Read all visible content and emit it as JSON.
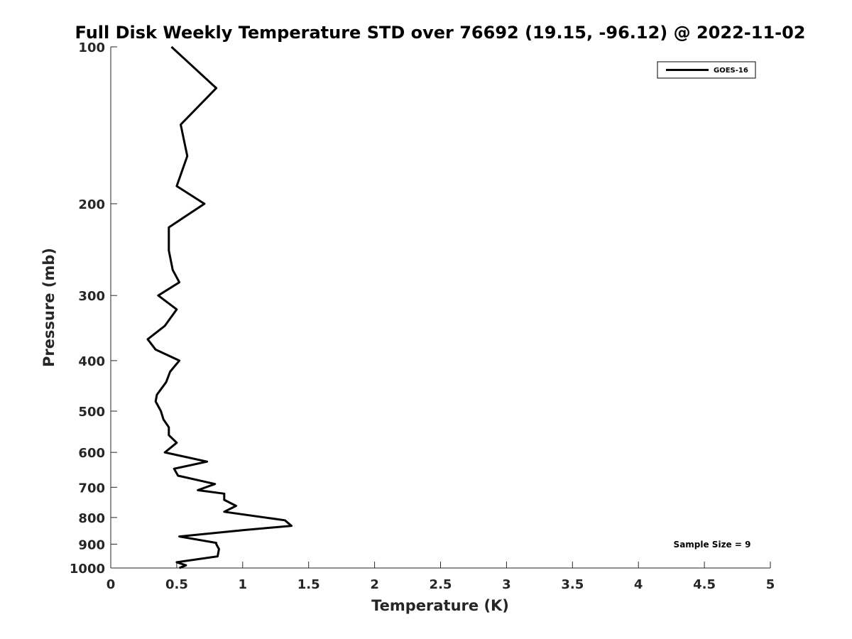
{
  "chart_data": {
    "type": "line",
    "title": "Full Disk Weekly Temperature STD over 76692 (19.15, -96.12) @ 2022-11-02",
    "xlabel": "Temperature (K)",
    "ylabel": "Pressure (mb)",
    "xlim": [
      0,
      5
    ],
    "ylim": [
      100,
      1000
    ],
    "y_scale": "log",
    "y_reversed": true,
    "grid": false,
    "legend_position": "top-right",
    "x_ticks": [
      "0",
      "0.5",
      "1",
      "1.5",
      "2",
      "2.5",
      "3",
      "3.5",
      "4",
      "4.5",
      "5"
    ],
    "y_ticks": [
      "100",
      "200",
      "300",
      "400",
      "500",
      "600",
      "700",
      "800",
      "900",
      "1000"
    ],
    "series": [
      {
        "name": "GOES-16",
        "color": "#000000",
        "points": [
          [
            0.46,
            100
          ],
          [
            0.8,
            120
          ],
          [
            0.53,
            141
          ],
          [
            0.58,
            162
          ],
          [
            0.5,
            185
          ],
          [
            0.71,
            200
          ],
          [
            0.44,
            222
          ],
          [
            0.44,
            246
          ],
          [
            0.47,
            268
          ],
          [
            0.52,
            283
          ],
          [
            0.36,
            300
          ],
          [
            0.5,
            319
          ],
          [
            0.41,
            343
          ],
          [
            0.28,
            364
          ],
          [
            0.34,
            381
          ],
          [
            0.52,
            400
          ],
          [
            0.45,
            420
          ],
          [
            0.42,
            440
          ],
          [
            0.35,
            465
          ],
          [
            0.34,
            479
          ],
          [
            0.38,
            500
          ],
          [
            0.4,
            519
          ],
          [
            0.44,
            537
          ],
          [
            0.44,
            556
          ],
          [
            0.5,
            575
          ],
          [
            0.41,
            600
          ],
          [
            0.73,
            625
          ],
          [
            0.48,
            645
          ],
          [
            0.51,
            665
          ],
          [
            0.79,
            690
          ],
          [
            0.66,
            709
          ],
          [
            0.86,
            720
          ],
          [
            0.86,
            740
          ],
          [
            0.95,
            760
          ],
          [
            0.86,
            780
          ],
          [
            1.32,
            810
          ],
          [
            1.37,
            830
          ],
          [
            1.0,
            846
          ],
          [
            0.52,
            870
          ],
          [
            0.8,
            895
          ],
          [
            0.8,
            900
          ],
          [
            0.82,
            920
          ],
          [
            0.81,
            950
          ],
          [
            0.5,
            975
          ],
          [
            0.57,
            988
          ],
          [
            0.52,
            1000
          ]
        ]
      }
    ],
    "annotations": [
      "Sample Size = 9"
    ]
  }
}
